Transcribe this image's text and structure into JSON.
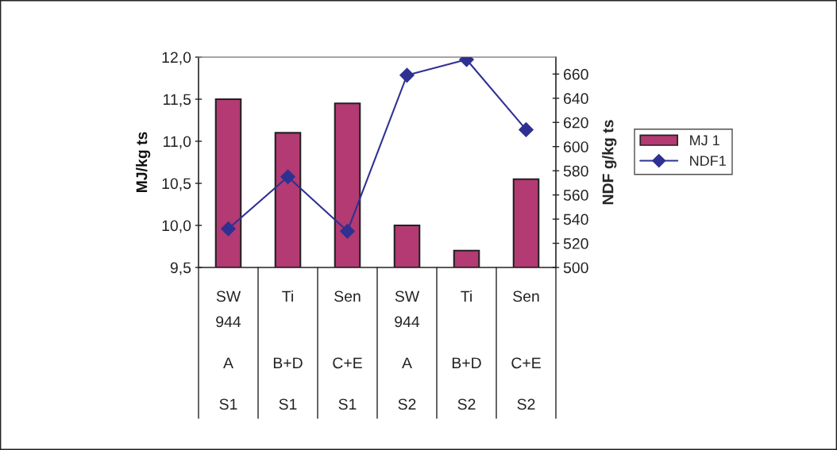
{
  "chart_data": {
    "type": "bar",
    "categories": [
      "SW 944\nA\nS1",
      "Ti\nB+D\nS1",
      "Sen\nC+E\nS1",
      "SW 944\nA\nS2",
      "Ti\nB+D\nS2",
      "Sen\nC+E\nS2"
    ],
    "series": [
      {
        "name": "MJ 1",
        "type": "bar",
        "color": "#b33a72",
        "values": [
          11.5,
          11.1,
          11.45,
          10.0,
          9.7,
          10.55
        ]
      },
      {
        "name": "NDF1",
        "type": "line",
        "axis": "y2",
        "color": "#2e3192",
        "marker": "diamond",
        "values": [
          532,
          575,
          530,
          659,
          672,
          614
        ]
      }
    ],
    "ylabel": "MJ/kg ts",
    "y2label": "NDF g/kg ts",
    "ylim": [
      9.5,
      12.0
    ],
    "yticks": [
      {
        "value": 9.5,
        "label": "9,5"
      },
      {
        "value": 10.0,
        "label": "10,0"
      },
      {
        "value": 10.5,
        "label": "10,5"
      },
      {
        "value": 11.0,
        "label": "11,0"
      },
      {
        "value": 11.5,
        "label": "11,5"
      },
      {
        "value": 12.0,
        "label": "12,0"
      }
    ],
    "y2lim": [
      500,
      674
    ],
    "y2ticks": [
      500,
      520,
      540,
      560,
      580,
      600,
      620,
      640,
      660
    ],
    "grid": false,
    "legend": "right"
  }
}
